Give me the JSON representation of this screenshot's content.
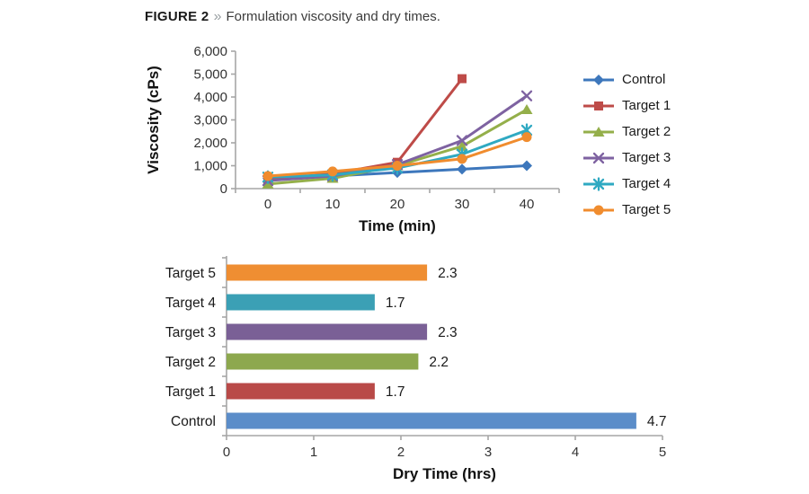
{
  "figure": {
    "label": "FIGURE 2",
    "separator": "»",
    "caption": "Formulation viscosity and dry times."
  },
  "colors": {
    "axis": "#a6a6a6",
    "text": "#262626",
    "control_blue": "#4e81bd",
    "target1_red": "#be4b48",
    "target2_green": "#94af4a",
    "target3_purple": "#7e62a1",
    "target4_teal": "#2fa9c2",
    "target5_orange": "#f08c2e"
  },
  "chart_data": [
    {
      "type": "line",
      "title": "",
      "xlabel": "Time (min)",
      "ylabel": "Viscosity (cPs)",
      "x": [
        0,
        10,
        20,
        30,
        40
      ],
      "x_tick_labels": [
        "0",
        "10",
        "20",
        "30",
        "40"
      ],
      "ylim": [
        0,
        6000
      ],
      "y_ticks": {
        "values": [
          0,
          1000,
          2000,
          3000,
          4000,
          5000,
          6000
        ],
        "labels": [
          "0",
          "1,000",
          "2,000",
          "3,000",
          "4,000",
          "5,000",
          "6,000"
        ]
      },
      "grid": false,
      "legend_position": "right",
      "series": [
        {
          "name": "Control",
          "marker": "diamond",
          "color": "#3d77bc",
          "values": [
            450,
            550,
            700,
            850,
            1000
          ]
        },
        {
          "name": "Target 1",
          "marker": "square",
          "color": "#be4b48",
          "values": [
            400,
            650,
            1150,
            4800,
            null
          ]
        },
        {
          "name": "Target 2",
          "marker": "triangle",
          "color": "#94af4a",
          "values": [
            200,
            450,
            1000,
            1850,
            3450
          ]
        },
        {
          "name": "Target 3",
          "marker": "x",
          "color": "#7e62a1",
          "values": [
            350,
            550,
            1050,
            2100,
            4050
          ]
        },
        {
          "name": "Target 4",
          "marker": "asterisk",
          "color": "#2fa9c2",
          "values": [
            500,
            600,
            900,
            1500,
            2550
          ]
        },
        {
          "name": "Target 5",
          "marker": "circle",
          "color": "#f08c2e",
          "values": [
            550,
            750,
            1000,
            1300,
            2250
          ]
        }
      ]
    },
    {
      "type": "bar",
      "orientation": "horizontal",
      "xlabel": "Dry Time (hrs)",
      "xlim": [
        0,
        5
      ],
      "x_ticks": {
        "values": [
          0,
          1,
          2,
          3,
          4,
          5
        ],
        "labels": [
          "0",
          "1",
          "2",
          "3",
          "4",
          "5"
        ]
      },
      "categories": [
        "Target 5",
        "Target 4",
        "Target 3",
        "Target 2",
        "Target 1",
        "Control"
      ],
      "values": [
        2.3,
        1.7,
        2.3,
        2.2,
        1.7,
        4.7
      ],
      "value_labels": [
        "2.3",
        "1.7",
        "2.3",
        "2.2",
        "1.7",
        "4.7"
      ],
      "bar_colors": [
        "#ef8e32",
        "#3ba0b5",
        "#7a6096",
        "#8da84e",
        "#b94a48",
        "#5b8dc9"
      ],
      "grid": false
    }
  ]
}
